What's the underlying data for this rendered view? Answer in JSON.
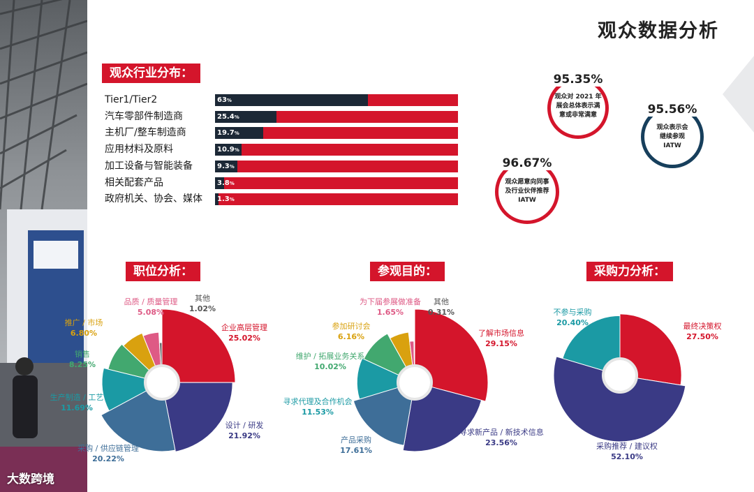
{
  "page_title": "观众数据分析",
  "industry_section": {
    "label": "观众行业分布："
  },
  "stats": [
    {
      "value": "95.35%",
      "desc": [
        "观众对 2021 年",
        "展会总体表示满",
        "意或非常满意"
      ],
      "color": "#d4152b"
    },
    {
      "value": "95.56%",
      "desc": [
        "观众表示会",
        "继续参观",
        "IATW"
      ],
      "color": "#173f5c"
    },
    {
      "value": "96.67%",
      "desc": [
        "观众愿意向同事",
        "及行业伙伴推荐",
        "IATW"
      ],
      "color": "#d4152b"
    }
  ],
  "watermark": "大数跨境",
  "chart_data": [
    {
      "type": "bar",
      "title": "观众行业分布：",
      "orientation": "horizontal",
      "categories": [
        "Tier1/Tier2",
        "汽车零部件制造商",
        "主机厂/整车制造商",
        "应用材料及原料",
        "加工设备与智能装备",
        "相关配套产品",
        "政府机关、协会、媒体"
      ],
      "values": [
        63,
        25.4,
        19.7,
        10.9,
        9.3,
        3.8,
        1.3
      ],
      "value_labels": [
        "63",
        "25.4",
        "19.7",
        "10.9",
        "9.3",
        "3.8",
        "1.3"
      ],
      "xlim": [
        0,
        100
      ],
      "colors": {
        "fill": "#1c2836",
        "track": "#d4152b"
      }
    },
    {
      "type": "pie",
      "title": "职位分析：",
      "slices": [
        {
          "label": "企业高层管理",
          "pct": "25.02%",
          "value": 25.02,
          "color": "#d4152b"
        },
        {
          "label": "设计 / 研发",
          "pct": "21.92%",
          "value": 21.92,
          "color": "#3a3a85"
        },
        {
          "label": "采购 / 供应链管理",
          "pct": "20.22%",
          "value": 20.22,
          "color": "#3e6e98"
        },
        {
          "label": "生产制造 / 工艺",
          "pct": "11.69%",
          "value": 11.69,
          "color": "#1b9aa4"
        },
        {
          "label": "销售",
          "pct": "8.25%",
          "value": 8.25,
          "color": "#42a86f"
        },
        {
          "label": "推广 / 市场",
          "pct": "6.80%",
          "value": 6.8,
          "color": "#d9a10f"
        },
        {
          "label": "品质 / 质量管理",
          "pct": "5.08%",
          "value": 5.08,
          "color": "#de5a85"
        },
        {
          "label": "其他",
          "pct": "1.02%",
          "value": 1.02,
          "color": "#6b6b6b"
        }
      ]
    },
    {
      "type": "pie",
      "title": "参观目的：",
      "slices": [
        {
          "label": "了解市场信息",
          "pct": "29.15%",
          "value": 29.15,
          "color": "#d4152b"
        },
        {
          "label": "寻求新产品 / 新技术信息",
          "pct": "23.56%",
          "value": 23.56,
          "color": "#3a3a85"
        },
        {
          "label": "产品采购",
          "pct": "17.61%",
          "value": 17.61,
          "color": "#3e6e98"
        },
        {
          "label": "寻求代理及合作机会",
          "pct": "11.53%",
          "value": 11.53,
          "color": "#1b9aa4"
        },
        {
          "label": "维护 / 拓展业务关系",
          "pct": "10.02%",
          "value": 10.02,
          "color": "#42a86f"
        },
        {
          "label": "参加研讨会",
          "pct": "6.16%",
          "value": 6.16,
          "color": "#d9a10f"
        },
        {
          "label": "为下届参展做准备",
          "pct": "1.65%",
          "value": 1.65,
          "color": "#de5a85"
        },
        {
          "label": "其他",
          "pct": "0.31%",
          "value": 0.31,
          "color": "#6b6b6b"
        }
      ]
    },
    {
      "type": "pie",
      "title": "采购力分析：",
      "slices": [
        {
          "label": "最终决策权",
          "pct": "27.50%",
          "value": 27.5,
          "color": "#d4152b"
        },
        {
          "label": "采购推荐 / 建议权",
          "pct": "52.10%",
          "value": 52.1,
          "color": "#3a3a85"
        },
        {
          "label": "不参与采购",
          "pct": "20.40%",
          "value": 20.4,
          "color": "#1b9aa4"
        }
      ]
    }
  ]
}
